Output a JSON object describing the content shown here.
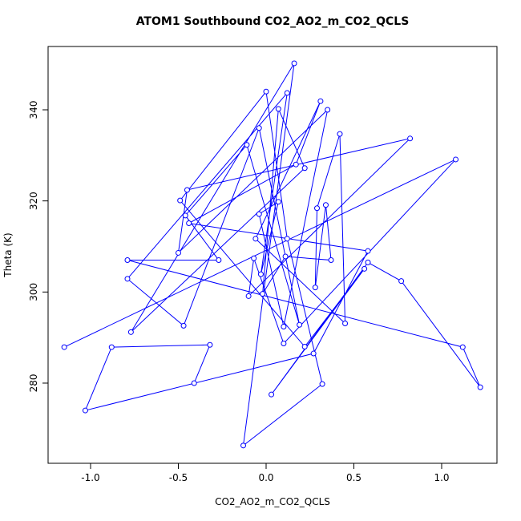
{
  "chart_data": {
    "type": "line",
    "markers": true,
    "title": "ATOM1 Southbound CO2_AO2_m_CO2_QCLS",
    "xlabel": "CO2_AO2_m_CO2_QCLS",
    "ylabel": "Theta (K)",
    "color": "#0000ff",
    "xlim": [
      -1.242,
      1.315
    ],
    "ylim": [
      262.4,
      353.9
    ],
    "xticks": [
      {
        "value": -1,
        "label": "-1.0"
      },
      {
        "value": -0.5,
        "label": "-0.5"
      },
      {
        "value": 0,
        "label": "0.0"
      },
      {
        "value": 0.5,
        "label": "0.5"
      },
      {
        "value": 1,
        "label": "1.0"
      }
    ],
    "yticks": [
      280,
      300,
      320,
      340
    ],
    "x": [
      -1.15,
      1.08,
      0.1,
      -0.07,
      -0.1,
      0.82,
      -0.45,
      -0.5,
      0.35,
      0.1,
      -0.04,
      0.07,
      -0.03,
      0.12,
      -0.79,
      -0.47,
      -0.04,
      0.19,
      -0.11,
      -0.46,
      -0.27,
      -0.79,
      1.12,
      1.22,
      0.77,
      0.58,
      0.03,
      0.56,
      0.22,
      -0.49,
      0.0,
      0.12,
      0.32,
      -0.13,
      0.16,
      -0.77,
      0.22,
      0.07,
      -0.02,
      0.11,
      0.37,
      0.34,
      0.28,
      0.29,
      0.42,
      0.45,
      -0.06,
      0.31,
      0.17,
      -0.44,
      0.58,
      0.27,
      -1.03,
      -0.88,
      -0.32,
      -0.41
    ],
    "values": [
      287.9,
      329.1,
      288.7,
      307.4,
      299.1,
      333.7,
      322.4,
      308.6,
      340.0,
      292.4,
      317.1,
      319.8,
      303.9,
      343.7,
      302.9,
      292.6,
      336.0,
      292.8,
      332.3,
      316.8,
      307.0,
      307.0,
      287.9,
      279.1,
      302.4,
      306.5,
      277.5,
      305.1,
      288.0,
      320.1,
      344.0,
      311.7,
      279.8,
      266.3,
      350.2,
      291.2,
      327.2,
      340.2,
      299.6,
      307.8,
      307.0,
      319.1,
      301.0,
      318.4,
      334.7,
      293.1,
      311.7,
      341.9,
      328.0,
      315.1,
      309.0,
      286.5,
      274.0,
      287.9,
      288.4,
      280.0
    ]
  }
}
